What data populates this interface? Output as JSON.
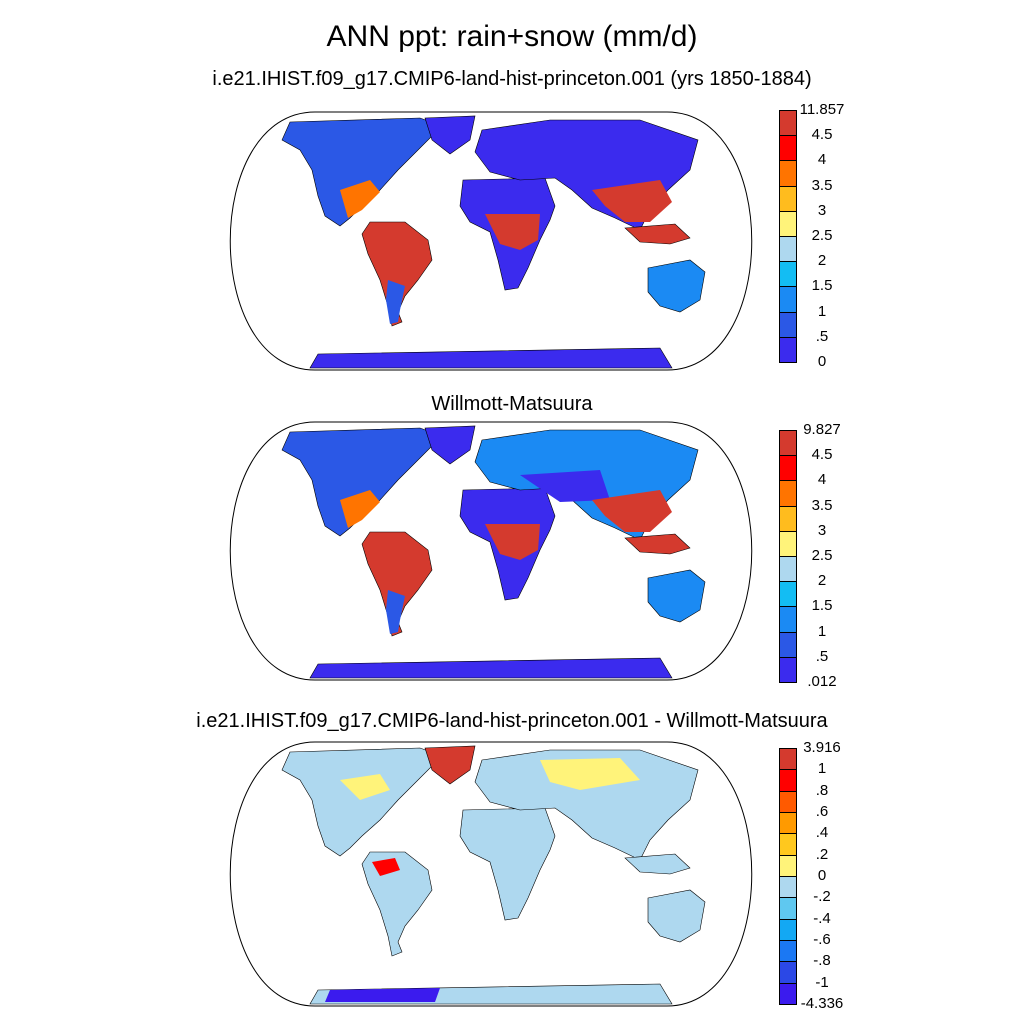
{
  "title": "ANN ppt: rain+snow (mm/d)",
  "panels": [
    {
      "id": "model",
      "title": "i.e21.IHIST.f09_g17.CMIP6-land-hist-princeton.001 (yrs 1850-1884)",
      "colorbar": {
        "labels": [
          "11.857",
          "4.5",
          "4",
          "3.5",
          "3",
          "2.5",
          "2",
          "1.5",
          "1",
          ".5",
          "0"
        ],
        "colors": [
          "#d43a2e",
          "#ff0000",
          "#ff7400",
          "#ffbc1e",
          "#fff37a",
          "#aed8ef",
          "#13bdf3",
          "#1b8af3",
          "#2b58e6",
          "#3b2bee"
        ]
      }
    },
    {
      "id": "observations",
      "title": "Willmott-Matsuura",
      "colorbar": {
        "labels": [
          "9.827",
          "4.5",
          "4",
          "3.5",
          "3",
          "2.5",
          "2",
          "1.5",
          "1",
          ".5",
          ".012"
        ],
        "colors": [
          "#d43a2e",
          "#ff0000",
          "#ff7400",
          "#ffbc1e",
          "#fff37a",
          "#aed8ef",
          "#13bdf3",
          "#1b8af3",
          "#2b58e6",
          "#3b2bee"
        ]
      }
    },
    {
      "id": "difference",
      "title": "i.e21.IHIST.f09_g17.CMIP6-land-hist-princeton.001 - Willmott-Matsuura",
      "colorbar": {
        "labels": [
          "3.916",
          "1",
          ".8",
          ".6",
          ".4",
          ".2",
          "0",
          "-.2",
          "-.4",
          "-.6",
          "-.8",
          "-1",
          "-4.336"
        ],
        "colors": [
          "#d43a2e",
          "#ff0000",
          "#ff5a00",
          "#ff9a00",
          "#ffc81e",
          "#fff37a",
          "#aed8ef",
          "#5fc8f0",
          "#13a8f3",
          "#1b78f3",
          "#2b48e6",
          "#3b1bee"
        ]
      }
    }
  ]
}
